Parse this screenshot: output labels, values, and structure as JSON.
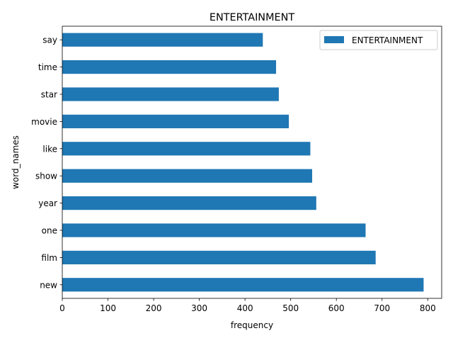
{
  "chart_data": {
    "type": "bar",
    "orientation": "horizontal",
    "title": "ENTERTAINMENT",
    "xlabel": "frequency",
    "ylabel": "word_names",
    "categories": [
      "new",
      "film",
      "one",
      "year",
      "show",
      "like",
      "movie",
      "star",
      "time",
      "say"
    ],
    "series": [
      {
        "name": "ENTERTAINMENT",
        "values": [
          791,
          686,
          664,
          556,
          547,
          543,
          496,
          474,
          468,
          439
        ],
        "color": "#1f77b4"
      }
    ],
    "xlim": [
      0,
      830.55
    ],
    "xticks": [
      0,
      100,
      200,
      300,
      400,
      500,
      600,
      700,
      800
    ],
    "grid": false,
    "legend_position": "top-right"
  }
}
